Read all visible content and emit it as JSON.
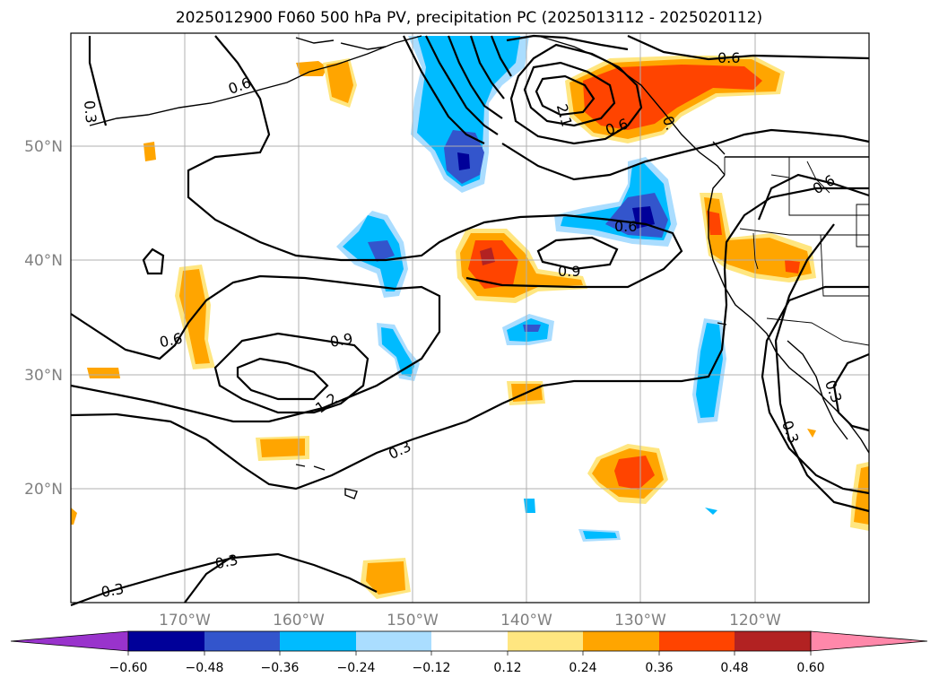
{
  "title": "2025012900 F060 500 hPa PV, precipitation PC (2025013112 - 2025020112)",
  "colors": {
    "neg_060": "#9933cc",
    "neg_048": "#000099",
    "neg_036": "#3355cc",
    "neg_024": "#00bbff",
    "neg_012": "#aaddff",
    "zero": "#ffffff",
    "pos_012": "#ffe680",
    "pos_024": "#ffa500",
    "pos_036": "#ff4400",
    "pos_048": "#b22222",
    "pos_060": "#ff88aa"
  },
  "map": {
    "lon_range": [
      -180,
      -110
    ],
    "lat_range": [
      10,
      60
    ],
    "lon_ticks": [
      "170°W",
      "160°W",
      "150°W",
      "140°W",
      "130°W",
      "120°W"
    ],
    "lat_ticks": [
      "50°N",
      "40°N",
      "30°N",
      "20°N"
    ],
    "grid": true
  },
  "colorbar": {
    "ticks": [
      "−0.60",
      "−0.48",
      "−0.36",
      "−0.24",
      "−0.12",
      "0.12",
      "0.24",
      "0.36",
      "0.48",
      "0.60"
    ],
    "extend": "both"
  },
  "contour_labels": [
    "0.3",
    "0.6",
    "0.6",
    "0.6",
    "0.6",
    "0.6",
    "0.6",
    "0.9",
    "0.9",
    "1.2",
    "0.3",
    "0.3",
    "0.3",
    "0.3",
    "0.3",
    "2.1",
    "0."
  ]
}
